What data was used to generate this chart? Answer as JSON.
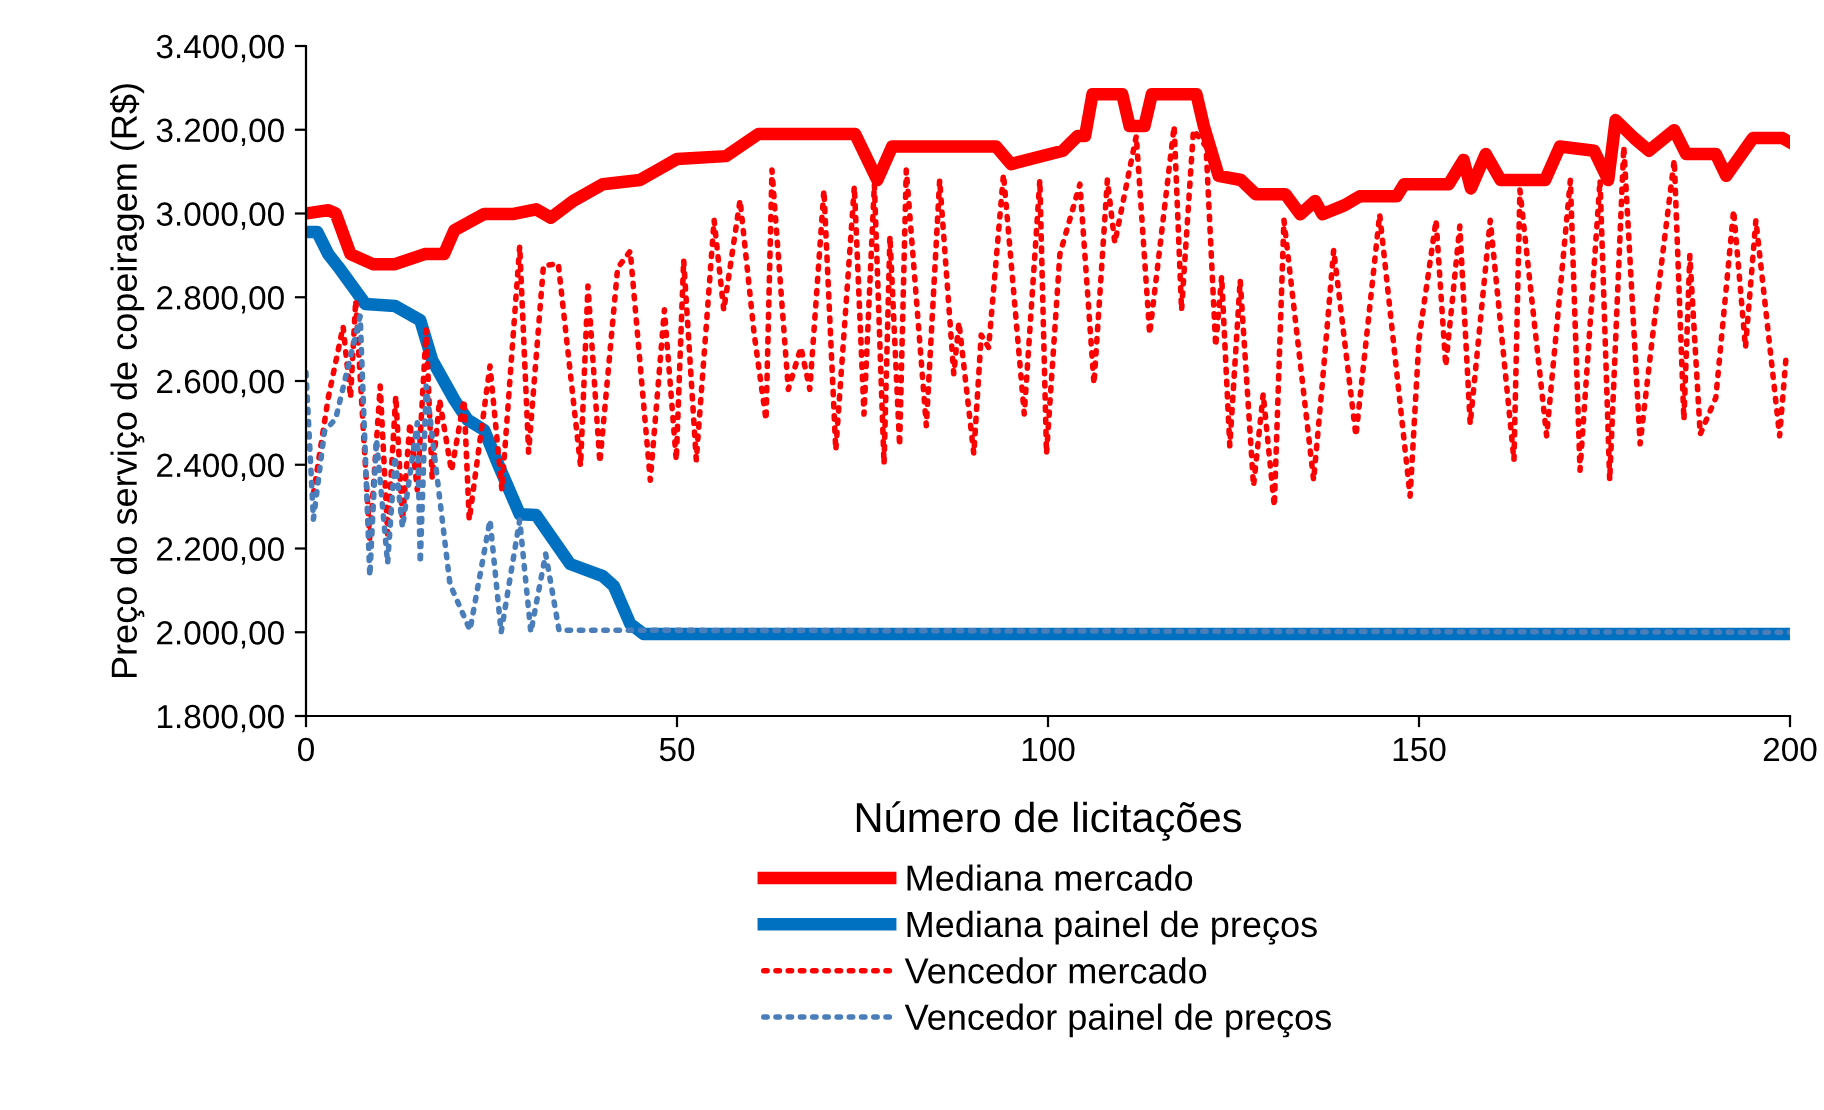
{
  "chart_data": {
    "type": "line",
    "xlabel": "Número de licitações",
    "ylabel": "Preço do serviço de copeiragem (R$)",
    "xlim": [
      0,
      200
    ],
    "xticks": [
      0,
      50,
      100,
      150,
      200
    ],
    "ylim": [
      1800,
      3400
    ],
    "yticks": [
      {
        "value": 1800,
        "label": "1.800,00"
      },
      {
        "value": 2000,
        "label": "2.000,00"
      },
      {
        "value": 2200,
        "label": "2.200,00"
      },
      {
        "value": 2400,
        "label": "2.400,00"
      },
      {
        "value": 2600,
        "label": "2.600,00"
      },
      {
        "value": 2800,
        "label": "2.800,00"
      },
      {
        "value": 3000,
        "label": "3.000,00"
      },
      {
        "value": 3200,
        "label": "3.200,00"
      },
      {
        "value": 3400,
        "label": "3.400,00"
      }
    ],
    "grid": false,
    "legend": "bottom",
    "marker": "none",
    "series": [
      {
        "name": "Mediana mercado",
        "color": "#ff0000",
        "line_style": "solid",
        "x": [
          0,
          3,
          4,
          6,
          9,
          12,
          16,
          18.6,
          20,
          24,
          28,
          31,
          33,
          36,
          40,
          45,
          47,
          50,
          56.6,
          61,
          74,
          77,
          79,
          93,
          95,
          102,
          104,
          105,
          106,
          110,
          111,
          113,
          114,
          120,
          121,
          123,
          126,
          128,
          132,
          134,
          136,
          137,
          140,
          142,
          147,
          148,
          154,
          156,
          157,
          159,
          161,
          167,
          169,
          173.6,
          175.5,
          176.5,
          179,
          181,
          184.4,
          186,
          190,
          191.4,
          195,
          199,
          200
        ],
        "values": [
          3000,
          3008,
          3000,
          2903,
          2879,
          2879,
          2903,
          2903,
          2960,
          2999,
          2999,
          3010,
          2990,
          3030,
          3070,
          3080,
          3100,
          3130,
          3137,
          3190,
          3190,
          3080,
          3160,
          3160,
          3118,
          3150,
          3185,
          3185,
          3285,
          3285,
          3209,
          3209,
          3285,
          3285,
          3209,
          3090,
          3080,
          3046,
          3046,
          2998,
          3030,
          2998,
          3020,
          3041,
          3041,
          3070,
          3070,
          3128,
          3060,
          3142,
          3080,
          3080,
          3160,
          3150,
          3080,
          3223,
          3180,
          3150,
          3199,
          3142,
          3142,
          3090,
          3180,
          3180,
          3170
        ]
      },
      {
        "name": "Mediana painel de preços",
        "color": "#0070c0",
        "line_style": "solid",
        "x": [
          0,
          1.5,
          3,
          4.3,
          8,
          12,
          15.4,
          17,
          20,
          21.8,
          24,
          26,
          28.8,
          31,
          35.6,
          40,
          41.5,
          43.7,
          45.5,
          200
        ],
        "values": [
          2956,
          2956,
          2903,
          2874,
          2784,
          2779,
          2745,
          2650,
          2555,
          2507,
          2483,
          2397,
          2282,
          2280,
          2163,
          2134,
          2110,
          2020,
          1996,
          1996
        ]
      },
      {
        "name": "Vencedor mercado",
        "color": "#ff0000",
        "line_style": "dotted",
        "x": [
          1,
          3,
          5,
          6,
          6.7,
          8.6,
          10,
          11,
          12.1,
          13,
          14,
          15,
          16.2,
          17,
          18,
          19.6,
          21.3,
          22,
          24.8,
          26.4,
          28.8,
          30,
          32,
          34,
          37,
          38,
          39.6,
          42,
          43.7,
          46.4,
          48.3,
          49.9,
          50.9,
          52.6,
          55,
          56.3,
          58.5,
          60.4,
          62,
          62.8,
          65,
          66.7,
          67.9,
          69.8,
          71.4,
          73.9,
          75.2,
          76.6,
          77.9,
          78.7,
          80,
          80.9,
          83.6,
          85.4,
          87.3,
          88,
          90,
          91,
          92,
          94,
          96.8,
          98.9,
          99.8,
          101.6,
          104.3,
          106.2,
          108,
          109,
          111.9,
          113.7,
          117,
          118,
          119.6,
          121.3,
          122.6,
          123.4,
          124.5,
          125.9,
          127.7,
          129,
          130.5,
          131.8,
          135.8,
          137,
          138.5,
          141.5,
          144.7,
          148.8,
          150,
          152.3,
          153.6,
          155.5,
          156.9,
          159.6,
          162.8,
          163.6,
          167.2,
          170.4,
          171.7,
          174.4,
          175.7,
          177.6,
          179.8,
          181.5,
          184.4,
          185.7,
          186.5,
          187.9,
          190,
          192.4,
          194,
          195.4,
          198.6,
          199.5
        ],
        "values": [
          2330,
          2560,
          2730,
          2560,
          2793,
          2220,
          2588,
          2235,
          2564,
          2268,
          2500,
          2340,
          2722,
          2368,
          2555,
          2385,
          2555,
          2268,
          2636,
          2340,
          2922,
          2430,
          2875,
          2880,
          2397,
          2827,
          2405,
          2870,
          2910,
          2363,
          2770,
          2411,
          2889,
          2411,
          2984,
          2769,
          3032,
          2712,
          2507,
          3104,
          2580,
          2680,
          2580,
          3056,
          2435,
          3065,
          2521,
          3070,
          2402,
          2946,
          2445,
          3104,
          2493,
          3080,
          2617,
          2740,
          2426,
          2710,
          2680,
          3094,
          2521,
          3080,
          2426,
          2903,
          3070,
          2593,
          3080,
          2930,
          3185,
          2712,
          3209,
          2769,
          3199,
          3160,
          2683,
          2850,
          2445,
          2841,
          2349,
          2569,
          2301,
          2984,
          2363,
          2600,
          2913,
          2469,
          2998,
          2325,
          2700,
          2984,
          2636,
          2970,
          2497,
          2984,
          2411,
          3056,
          2469,
          3080,
          2387,
          3080,
          2363,
          3160,
          2450,
          2710,
          3128,
          2507,
          2900,
          2473,
          2560,
          3008,
          2680,
          2984,
          2469,
          2664
        ]
      },
      {
        "name": "Vencedor painel de preços",
        "color": "#4a7ebb",
        "line_style": "dotted",
        "x": [
          0,
          1,
          2.5,
          4,
          7.3,
          8.6,
          9.5,
          11,
          12,
          13,
          15,
          15.4,
          16.2,
          19.4,
          22.1,
          24.8,
          26.3,
          28.8,
          30.3,
          32.3,
          34.1,
          200
        ],
        "values": [
          2620,
          2270,
          2480,
          2510,
          2755,
          2134,
          2460,
          2165,
          2420,
          2250,
          2500,
          2165,
          2588,
          2115,
          2005,
          2268,
          2000,
          2268,
          2000,
          2187,
          2005,
          2000
        ]
      }
    ]
  }
}
